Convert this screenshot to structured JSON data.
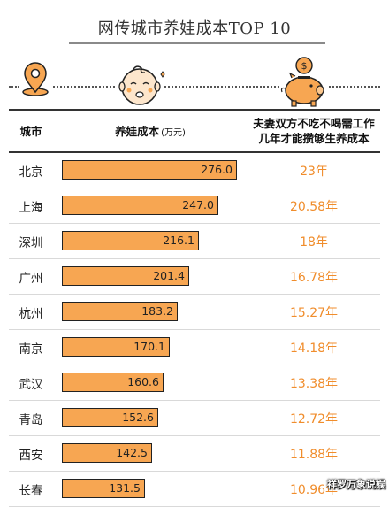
{
  "title": "网传城市养娃成本TOP 10",
  "header": {
    "city": "城市",
    "cost": "养娃成本",
    "cost_unit": "(万元)",
    "years_line1": "夫妻双方不吃不喝需工作",
    "years_line2": "几年才能攒够生养成本"
  },
  "icons": [
    "location-pin-icon",
    "baby-face-icon",
    "piggy-bank-icon"
  ],
  "colors": {
    "bar": "#f7a652",
    "years_text": "#f08d2c",
    "bar_border": "#222222"
  },
  "chart_data": {
    "type": "bar",
    "orientation": "horizontal",
    "title": "网传城市养娃成本TOP 10",
    "categories": [
      "北京",
      "上海",
      "深圳",
      "广州",
      "杭州",
      "南京",
      "武汉",
      "青岛",
      "西安",
      "长春"
    ],
    "series": [
      {
        "name": "养娃成本(万元)",
        "values": [
          "276.0",
          "247.0",
          "216.1",
          "201.4",
          "183.2",
          "170.1",
          "160.6",
          "152.6",
          "142.5",
          "131.5"
        ]
      }
    ],
    "years": [
      "23年",
      "20.58年",
      "18年",
      "16.78年",
      "15.27年",
      "14.18年",
      "13.38年",
      "12.72年",
      "11.88年",
      "10.96年"
    ],
    "xlim": [
      0,
      276.0
    ]
  },
  "watermark": "祥罗万象说娱"
}
